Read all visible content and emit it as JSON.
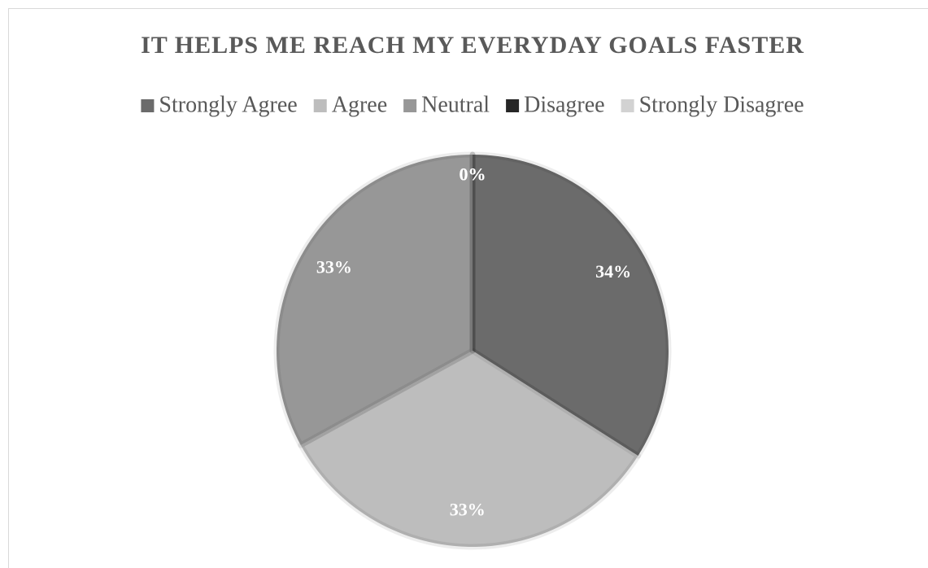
{
  "chart_data": {
    "type": "pie",
    "title": "IT HELPS ME REACH MY EVERYDAY GOALS FASTER",
    "categories": [
      "Strongly Agree",
      "Agree",
      "Neutral",
      "Disagree",
      "Strongly Disagree"
    ],
    "values": [
      34,
      33,
      33,
      0,
      0
    ],
    "value_labels": [
      "34%",
      "33%",
      "33%",
      "0%",
      "0%"
    ],
    "colors": [
      "#6b6b6b",
      "#bdbdbd",
      "#979797",
      "#262626",
      "#d2d2d2"
    ],
    "legend": "top"
  }
}
